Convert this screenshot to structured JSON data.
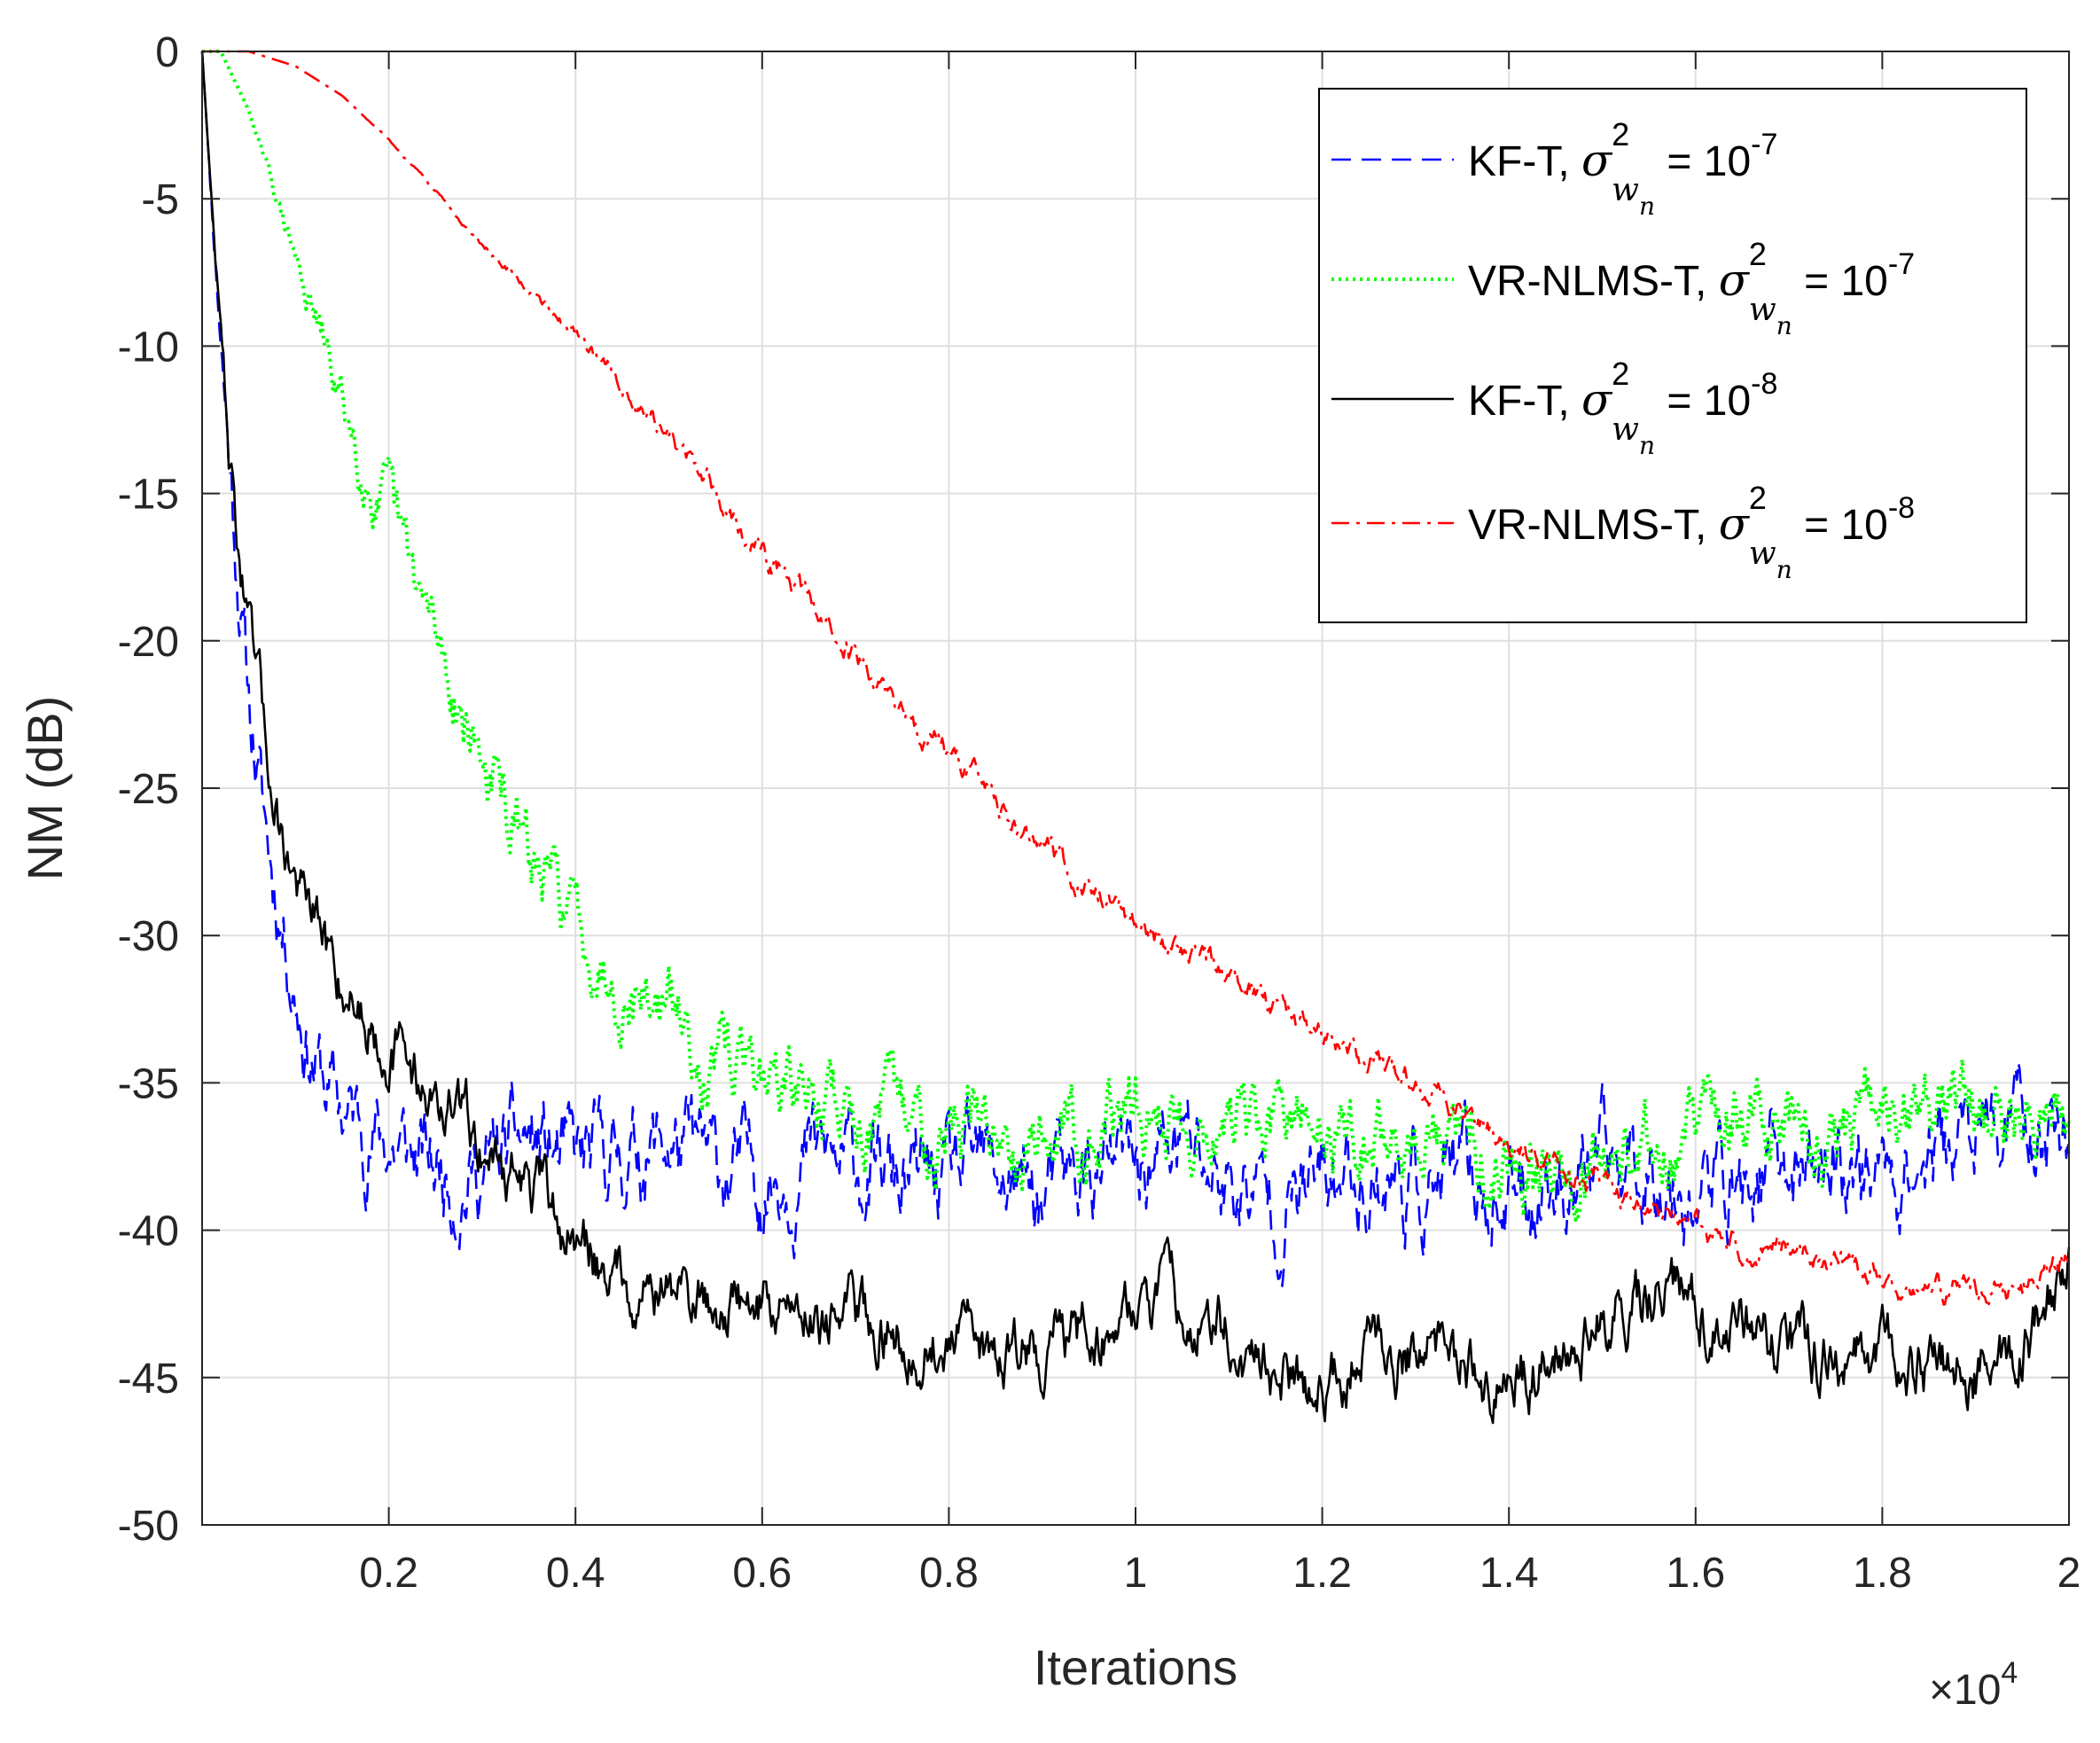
{
  "chart_data": {
    "type": "line",
    "title": "",
    "xlabel": "Iterations",
    "ylabel": "NM (dB)",
    "x_multiplier": {
      "prefix": "×",
      "base": "10",
      "exponent": "4"
    },
    "xlim": [
      0,
      2
    ],
    "ylim": [
      -50,
      0
    ],
    "xticks": [
      0.2,
      0.4,
      0.6,
      0.8,
      1,
      1.2,
      1.4,
      1.6,
      1.8,
      2
    ],
    "xtick_labels": [
      "0.2",
      "0.4",
      "0.6",
      "0.8",
      "1",
      "1.2",
      "1.4",
      "1.6",
      "1.8",
      "2"
    ],
    "yticks": [
      0,
      -5,
      -10,
      -15,
      -20,
      -25,
      -30,
      -35,
      -40,
      -45,
      -50
    ],
    "ytick_labels": [
      "0",
      "-5",
      "-10",
      "-15",
      "-20",
      "-25",
      "-30",
      "-35",
      "-40",
      "-45",
      "-50"
    ],
    "grid": true,
    "legend_position": "top-right",
    "series": [
      {
        "name": "KF-T, σ² w n = 10-7",
        "legend": {
          "algo": "KF-T, ",
          "sigma": "σ",
          "sup": "2",
          "sub": "w",
          "subsub": "n",
          "eq": " = 10",
          "exp": "-7"
        },
        "color": "#0000ff",
        "dash": "dashed",
        "x": [
          0,
          0.01,
          0.03,
          0.05,
          0.07,
          0.09,
          0.11,
          0.13,
          0.15,
          0.2,
          0.25,
          0.3,
          0.35,
          0.4,
          0.45,
          0.5,
          0.55,
          0.6,
          0.65,
          0.7,
          0.75,
          0.8,
          0.85,
          0.9,
          0.95,
          1.0,
          1.05,
          1.1,
          1.15,
          1.2,
          1.25,
          1.3,
          1.35,
          1.4,
          1.45,
          1.5,
          1.55,
          1.6,
          1.65,
          1.7,
          1.75,
          1.8,
          1.85,
          1.9,
          1.95,
          2.0
        ],
        "y": [
          0,
          -5,
          -14,
          -22,
          -27,
          -30,
          -33,
          -35,
          -36,
          -37,
          -38,
          -38,
          -37,
          -38,
          -37.5,
          -37,
          -38,
          -38,
          -37.5,
          -38,
          -38.5,
          -38.5,
          -38,
          -39,
          -38,
          -38,
          -37,
          -38.5,
          -39,
          -38.5,
          -38,
          -38.5,
          -38.5,
          -39,
          -38,
          -38,
          -37.5,
          -38.5,
          -38.5,
          -38,
          -37.5,
          -38,
          -37.5,
          -37,
          -36.5,
          -36.5
        ],
        "noise": 1.3
      },
      {
        "name": "VR-NLMS-T, σ² w n = 10-7",
        "legend": {
          "algo": "VR-NLMS-T, ",
          "sigma": "σ",
          "sup": "2",
          "sub": "w",
          "subsub": "n",
          "eq": " = 10",
          "exp": "-7"
        },
        "color": "#00ff00",
        "dash": "dotted",
        "x": [
          0,
          0.02,
          0.05,
          0.1,
          0.15,
          0.2,
          0.25,
          0.3,
          0.35,
          0.4,
          0.45,
          0.5,
          0.55,
          0.6,
          0.65,
          0.7,
          0.8,
          0.9,
          1.0,
          1.1,
          1.2,
          1.3,
          1.4,
          1.5,
          1.6,
          1.7,
          1.8,
          1.9,
          2.0
        ],
        "y": [
          0,
          0,
          -2,
          -7,
          -12,
          -16,
          -20,
          -24,
          -27.5,
          -29.5,
          -31.5,
          -32.5,
          -34.5,
          -34.5,
          -35.5,
          -36,
          -36.5,
          -36.5,
          -36,
          -36.5,
          -36.5,
          -37,
          -37.5,
          -37.5,
          -36.5,
          -36.5,
          -36.5,
          -36,
          -36
        ],
        "noise": 1.0
      },
      {
        "name": "KF-T, σ² w n = 10-8",
        "legend": {
          "algo": "KF-T, ",
          "sigma": "σ",
          "sup": "2",
          "sub": "w",
          "subsub": "n",
          "eq": " = 10",
          "exp": "-8"
        },
        "color": "#000000",
        "dash": "solid",
        "x": [
          0,
          0.01,
          0.03,
          0.05,
          0.07,
          0.09,
          0.11,
          0.13,
          0.15,
          0.2,
          0.25,
          0.3,
          0.35,
          0.4,
          0.45,
          0.5,
          0.55,
          0.6,
          0.65,
          0.7,
          0.75,
          0.8,
          0.85,
          0.9,
          0.95,
          1.0,
          1.05,
          1.1,
          1.15,
          1.2,
          1.25,
          1.3,
          1.35,
          1.4,
          1.45,
          1.5,
          1.55,
          1.6,
          1.65,
          1.7,
          1.75,
          1.8,
          1.85,
          1.9,
          1.95,
          2.0
        ],
        "y": [
          0,
          -5,
          -14,
          -20,
          -24,
          -27,
          -29,
          -30.5,
          -31.5,
          -33.5,
          -35.5,
          -37,
          -38.5,
          -40.5,
          -41.5,
          -42,
          -42.5,
          -42.5,
          -42.5,
          -43,
          -43.5,
          -44,
          -44,
          -44,
          -43.5,
          -42.5,
          -42.5,
          -43.5,
          -45,
          -45,
          -44,
          -44,
          -44.5,
          -45.5,
          -44,
          -43,
          -42.5,
          -42.5,
          -43.5,
          -44,
          -44.5,
          -44.5,
          -44.5,
          -45,
          -44,
          -41.5
        ],
        "noise": 0.9
      },
      {
        "name": "VR-NLMS-T, σ² w n = 10-8",
        "legend": {
          "algo": "VR-NLMS-T, ",
          "sigma": "σ",
          "sup": "2",
          "sub": "w",
          "subsub": "n",
          "eq": " = 10",
          "exp": "-8"
        },
        "color": "#ff0000",
        "dash": "dashdot",
        "x": [
          0,
          0.05,
          0.1,
          0.15,
          0.2,
          0.3,
          0.4,
          0.5,
          0.6,
          0.7,
          0.8,
          0.9,
          1.0,
          1.1,
          1.2,
          1.3,
          1.35,
          1.4,
          1.45,
          1.5,
          1.55,
          1.6,
          1.65,
          1.7,
          1.75,
          1.8,
          1.85,
          1.9,
          1.95,
          2.0
        ],
        "y": [
          0,
          0,
          -0.5,
          -1.5,
          -3,
          -6.5,
          -9.5,
          -13,
          -17,
          -20.5,
          -24,
          -27,
          -29.5,
          -31.5,
          -33.5,
          -35,
          -36,
          -37,
          -38,
          -38.5,
          -39.5,
          -40,
          -40.5,
          -40.5,
          -41,
          -41.5,
          -42,
          -42,
          -42,
          -41
        ],
        "noise": 0.35
      }
    ]
  }
}
